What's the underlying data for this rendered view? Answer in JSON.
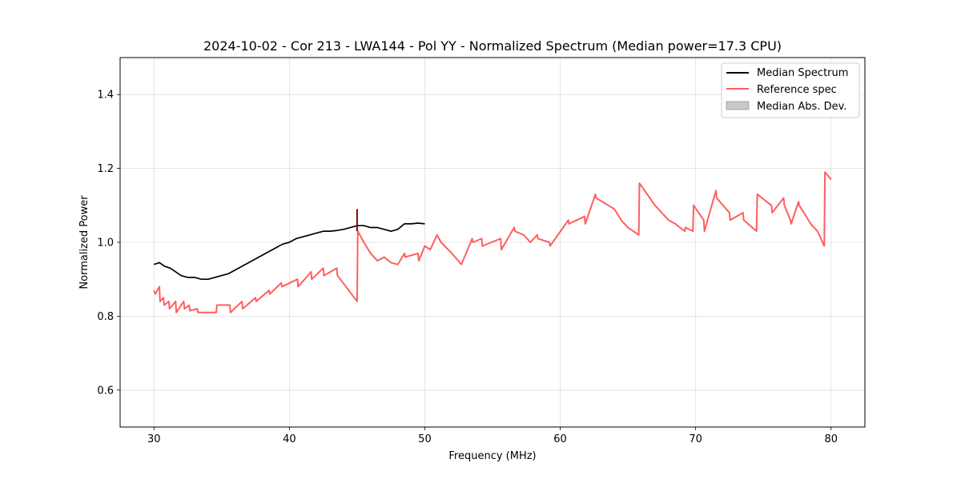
{
  "chart_data": {
    "type": "line",
    "title": "2024-10-02 - Cor 213 - LWA144 - Pol YY - Normalized Spectrum (Median power=17.3 CPU)",
    "xlabel": "Frequency (MHz)",
    "ylabel": "Normalized Power",
    "xlim": [
      27.5,
      82.5
    ],
    "ylim": [
      0.5,
      1.5
    ],
    "xticks": [
      30,
      40,
      50,
      60,
      70,
      80
    ],
    "yticks": [
      0.6,
      0.8,
      1.0,
      1.2,
      1.4
    ],
    "xtick_labels": [
      "30",
      "40",
      "50",
      "60",
      "70",
      "80"
    ],
    "ytick_labels": [
      "0.6",
      "0.8",
      "1.0",
      "1.2",
      "1.4"
    ],
    "grid": true,
    "legend_position": "top-right",
    "legend": [
      "Median Spectrum",
      "Reference spec",
      "Median Abs. Dev."
    ],
    "colors": {
      "median": "#000000",
      "reference": "#ff5e5e",
      "mad": "#c8c8c8",
      "spike": "#8b0000"
    },
    "series": [
      {
        "name": "Median Spectrum",
        "x": [
          30.0,
          30.4,
          30.8,
          31.2,
          31.6,
          32.0,
          32.5,
          33.0,
          33.5,
          34.0,
          34.5,
          35.0,
          35.5,
          36.0,
          36.5,
          37.0,
          37.5,
          38.0,
          38.5,
          39.0,
          39.5,
          40.0,
          40.5,
          41.0,
          41.5,
          42.0,
          42.5,
          43.0,
          43.5,
          44.0,
          44.5,
          45.0,
          45.5,
          46.0,
          46.5,
          47.0,
          47.5,
          48.0,
          48.5,
          49.0,
          49.5,
          50.0
        ],
        "values": [
          0.94,
          0.945,
          0.935,
          0.93,
          0.92,
          0.91,
          0.905,
          0.905,
          0.9,
          0.9,
          0.905,
          0.91,
          0.915,
          0.925,
          0.935,
          0.945,
          0.955,
          0.965,
          0.975,
          0.985,
          0.995,
          1.0,
          1.01,
          1.015,
          1.02,
          1.025,
          1.03,
          1.03,
          1.032,
          1.035,
          1.04,
          1.045,
          1.045,
          1.04,
          1.04,
          1.035,
          1.03,
          1.035,
          1.05,
          1.05,
          1.052,
          1.05
        ]
      },
      {
        "name": "Reference spec",
        "x": [
          30.0,
          30.1,
          30.4,
          30.45,
          30.7,
          30.75,
          31.1,
          31.15,
          31.6,
          31.65,
          32.2,
          32.25,
          32.6,
          32.65,
          33.2,
          33.25,
          34.6,
          34.65,
          35.6,
          35.65,
          36.5,
          36.55,
          37.5,
          37.55,
          38.5,
          38.55,
          39.4,
          39.45,
          40.6,
          40.65,
          41.6,
          41.65,
          42.5,
          42.55,
          43.5,
          43.55,
          45.0,
          45.05,
          45.5,
          46.0,
          46.5,
          47.0,
          47.5,
          48.0,
          48.5,
          48.55,
          49.5,
          49.55,
          50.0,
          50.4,
          50.9,
          51.2,
          52.0,
          52.7,
          53.5,
          53.55,
          54.2,
          54.25,
          55.6,
          55.65,
          56.6,
          56.65,
          57.3,
          57.8,
          58.3,
          58.35,
          59.2,
          59.25,
          60.6,
          60.65,
          61.8,
          61.85,
          62.6,
          62.65,
          64.0,
          64.5,
          65.0,
          65.8,
          65.85,
          67.0,
          67.5,
          68.0,
          68.5,
          69.2,
          69.25,
          69.8,
          69.85,
          70.6,
          70.65,
          71.5,
          71.55,
          72.5,
          72.55,
          73.5,
          73.55,
          74.5,
          74.55,
          75.6,
          75.65,
          76.5,
          76.55,
          77.0,
          77.05,
          77.6,
          77.65,
          78.0,
          78.5,
          79.0,
          79.5,
          79.55,
          80.0
        ],
        "values": [
          0.87,
          0.86,
          0.88,
          0.84,
          0.85,
          0.83,
          0.84,
          0.82,
          0.84,
          0.81,
          0.84,
          0.82,
          0.83,
          0.815,
          0.82,
          0.81,
          0.81,
          0.83,
          0.83,
          0.81,
          0.84,
          0.82,
          0.85,
          0.84,
          0.87,
          0.86,
          0.89,
          0.88,
          0.9,
          0.88,
          0.92,
          0.9,
          0.93,
          0.91,
          0.93,
          0.91,
          0.84,
          1.03,
          1.0,
          0.97,
          0.95,
          0.96,
          0.945,
          0.94,
          0.97,
          0.96,
          0.97,
          0.95,
          0.99,
          0.98,
          1.02,
          1.0,
          0.97,
          0.94,
          1.01,
          1.0,
          1.01,
          0.99,
          1.01,
          0.98,
          1.04,
          1.03,
          1.02,
          1.0,
          1.02,
          1.01,
          1.0,
          0.99,
          1.06,
          1.05,
          1.07,
          1.05,
          1.13,
          1.12,
          1.09,
          1.06,
          1.04,
          1.02,
          1.16,
          1.1,
          1.08,
          1.06,
          1.05,
          1.03,
          1.04,
          1.03,
          1.1,
          1.06,
          1.03,
          1.14,
          1.12,
          1.08,
          1.06,
          1.08,
          1.06,
          1.03,
          1.13,
          1.1,
          1.08,
          1.12,
          1.1,
          1.06,
          1.05,
          1.11,
          1.1,
          1.08,
          1.05,
          1.03,
          0.99,
          1.19,
          1.17
        ]
      }
    ],
    "spike": {
      "x": 45.0,
      "values": [
        1.03,
        1.09
      ]
    }
  }
}
